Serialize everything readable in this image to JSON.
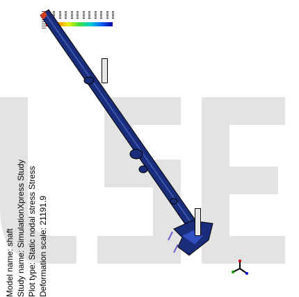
{
  "info": {
    "model_name": "Model name: shaft",
    "study_name": "Study name: SimulationXpress Study",
    "plot_type": "Plot type: Static nodal stress Stress",
    "deformation_scale": "Deformation scale: 21191.9"
  },
  "colors": {
    "model": "#1a2d7a",
    "model_edge": "#000000",
    "watermark": "#e3e3e3"
  },
  "icons": {
    "triad": "axis-triad-icon"
  },
  "watermark_text": "USE"
}
